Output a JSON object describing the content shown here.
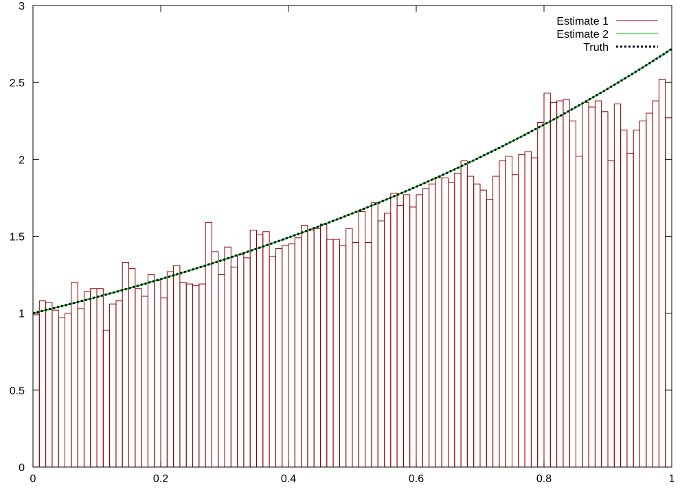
{
  "chart_data": {
    "type": "bar",
    "title": "",
    "xlabel": "",
    "ylabel": "",
    "xlim": [
      0,
      1
    ],
    "ylim": [
      0,
      3
    ],
    "x_ticks": [
      "0",
      "0.2",
      "0.4",
      "0.6",
      "0.8",
      "1"
    ],
    "x_tick_values": [
      0,
      0.2,
      0.4,
      0.6,
      0.8,
      1
    ],
    "y_ticks": [
      "0",
      "0.5",
      "1",
      "1.5",
      "2",
      "2.5",
      "3"
    ],
    "y_tick_values": [
      0,
      0.5,
      1,
      1.5,
      2,
      2.5,
      3
    ],
    "grid": false,
    "legend_position": "top-right",
    "bin_width": 0.01,
    "series": [
      {
        "name": "Estimate 1",
        "kind": "histogram",
        "color": "#8b0000",
        "values": [
          0.99,
          1.08,
          1.07,
          1.02,
          0.97,
          1.0,
          1.2,
          1.03,
          1.14,
          1.16,
          1.16,
          0.89,
          1.06,
          1.08,
          1.33,
          1.29,
          1.16,
          1.11,
          1.25,
          1.21,
          1.1,
          1.27,
          1.31,
          1.2,
          1.19,
          1.18,
          1.19,
          1.59,
          1.4,
          1.25,
          1.43,
          1.3,
          1.38,
          1.36,
          1.54,
          1.51,
          1.53,
          1.37,
          1.42,
          1.44,
          1.45,
          1.49,
          1.57,
          1.54,
          1.55,
          1.58,
          1.48,
          1.48,
          1.44,
          1.55,
          1.46,
          1.66,
          1.46,
          1.72,
          1.6,
          1.65,
          1.78,
          1.7,
          1.77,
          1.69,
          1.77,
          1.81,
          1.84,
          1.88,
          1.88,
          1.85,
          1.91,
          1.99,
          1.89,
          1.84,
          1.8,
          1.74,
          1.89,
          1.99,
          2.02,
          1.9,
          2.03,
          2.05,
          2.01,
          2.24,
          2.43,
          2.37,
          2.38,
          2.39,
          2.25,
          2.02,
          2.37,
          2.34,
          2.38,
          2.31,
          1.99,
          2.36,
          2.19,
          2.04,
          2.19,
          2.25,
          2.3,
          2.38,
          2.52,
          2.27
        ],
        "values_estimated_note": ""
      },
      {
        "name": "Estimate 2",
        "kind": "line",
        "color": "#00c000",
        "function": "exp(x)"
      },
      {
        "name": "Truth",
        "kind": "line",
        "color": "#000020",
        "dash": true,
        "function": "exp(x)"
      }
    ]
  }
}
